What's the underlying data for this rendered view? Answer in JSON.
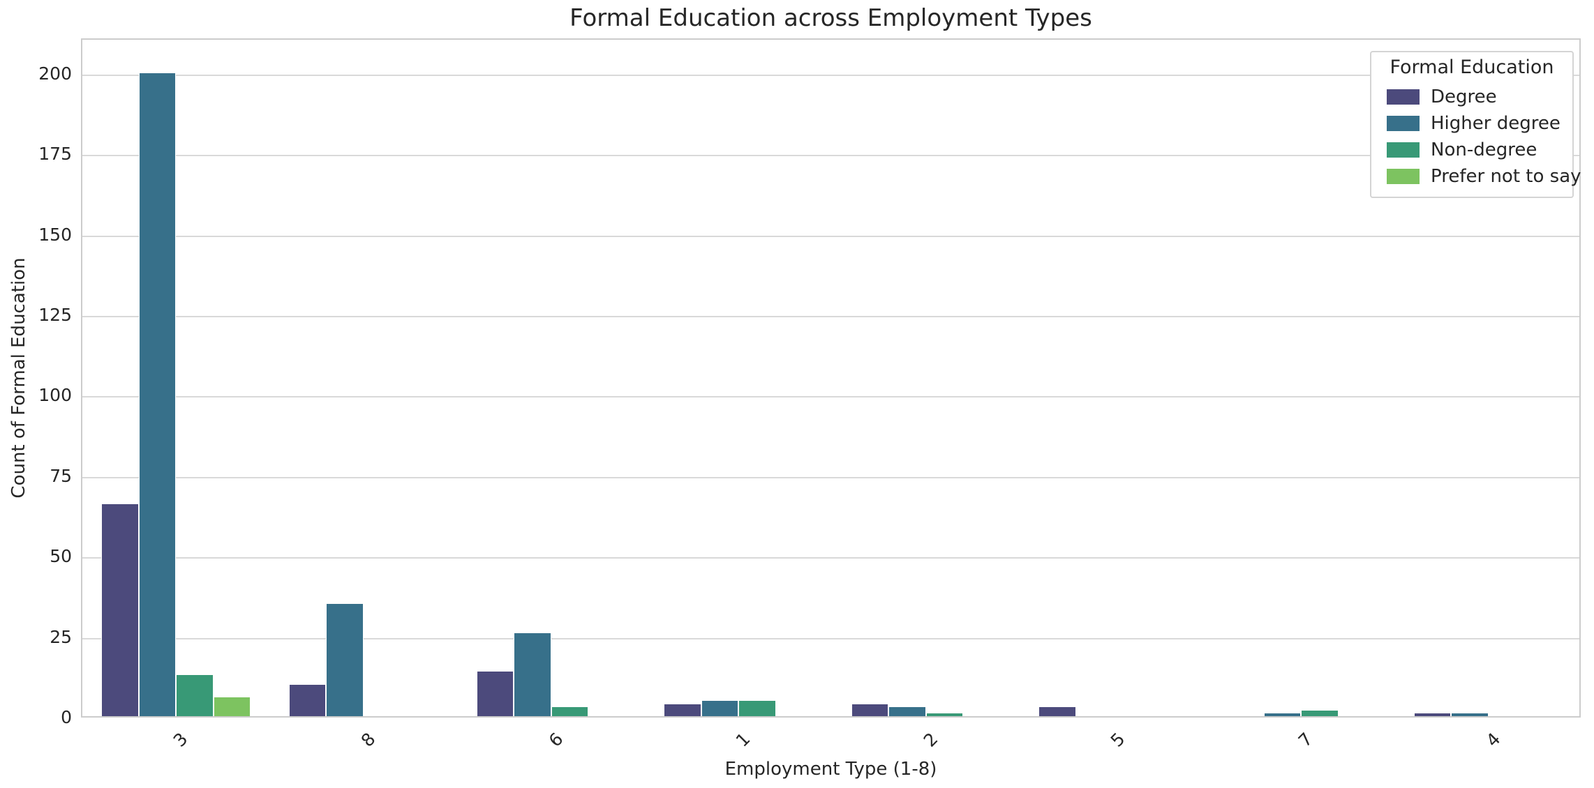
{
  "chart_data": {
    "type": "bar",
    "title": "Formal Education across Employment Types",
    "xlabel": "Employment Type (1-8)",
    "ylabel": "Count of Formal Education",
    "categories": [
      "3",
      "8",
      "6",
      "1",
      "2",
      "5",
      "7",
      "4"
    ],
    "series": [
      {
        "name": "Degree",
        "color": "#4c4a7c",
        "values": [
          66,
          10,
          14,
          4,
          4,
          3,
          0,
          1
        ]
      },
      {
        "name": "Higher degree",
        "color": "#37708a",
        "values": [
          200,
          35,
          26,
          5,
          3,
          0,
          1,
          1
        ]
      },
      {
        "name": "Non-degree",
        "color": "#389976",
        "values": [
          13,
          0,
          3,
          5,
          1,
          0,
          2,
          0
        ]
      },
      {
        "name": "Prefer not to say",
        "color": "#7dc360",
        "values": [
          6,
          0,
          0,
          0,
          0,
          0,
          0,
          0
        ]
      }
    ],
    "yticks": [
      0,
      25,
      50,
      75,
      100,
      125,
      150,
      175,
      200
    ],
    "ylim": [
      0,
      211
    ],
    "grid": true,
    "x_tick_rotation": 45,
    "legend": {
      "title": "Formal Education",
      "position": "upper right"
    },
    "style": {
      "background": "#ffffff",
      "grid_color": "#d9d9d9",
      "spine_color": "#cccccc",
      "text_color": "#262626"
    }
  }
}
